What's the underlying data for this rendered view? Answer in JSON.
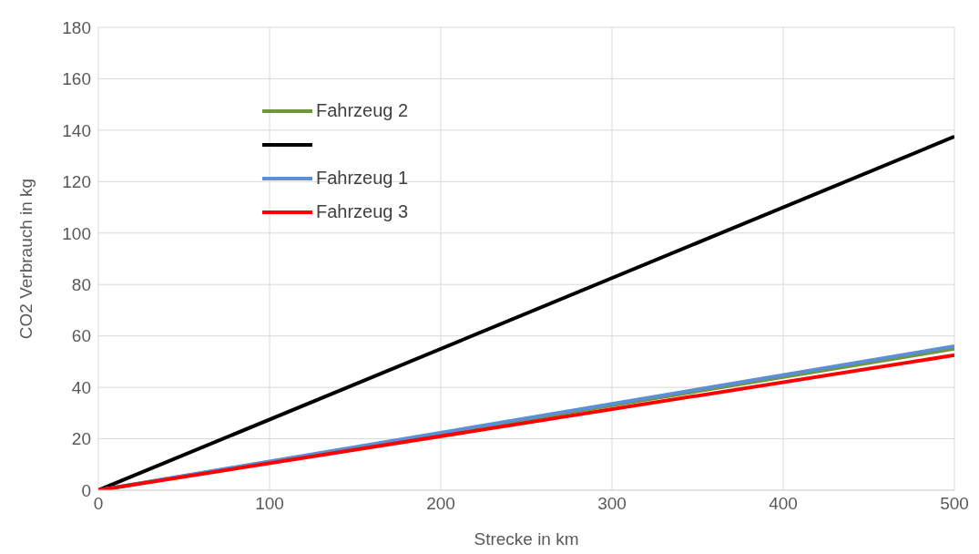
{
  "chart_data": {
    "type": "line",
    "xlabel": "Strecke in km",
    "ylabel": "CO2 Verbrauch in kg",
    "x": [
      0,
      500
    ],
    "xlim": [
      0,
      500
    ],
    "xticks": [
      0,
      100,
      200,
      300,
      400,
      500
    ],
    "ylim": [
      0,
      180
    ],
    "yticks": [
      0,
      20,
      40,
      60,
      80,
      100,
      120,
      140,
      160,
      180
    ],
    "grid": true,
    "legend": "top left",
    "marker": "none",
    "line_style": "solid",
    "series": [
      {
        "name": "Fahrzeug 2",
        "color": "#70963c",
        "values": [
          0,
          55
        ]
      },
      {
        "color": "#000000",
        "values": [
          0,
          137.5
        ]
      },
      {
        "name": "Fahrzeug 1",
        "color": "#5b8fd6",
        "values": [
          0,
          56
        ]
      },
      {
        "name": "Fahrzeug 3",
        "color": "#ff0000",
        "values": [
          0,
          52.5
        ]
      }
    ]
  }
}
